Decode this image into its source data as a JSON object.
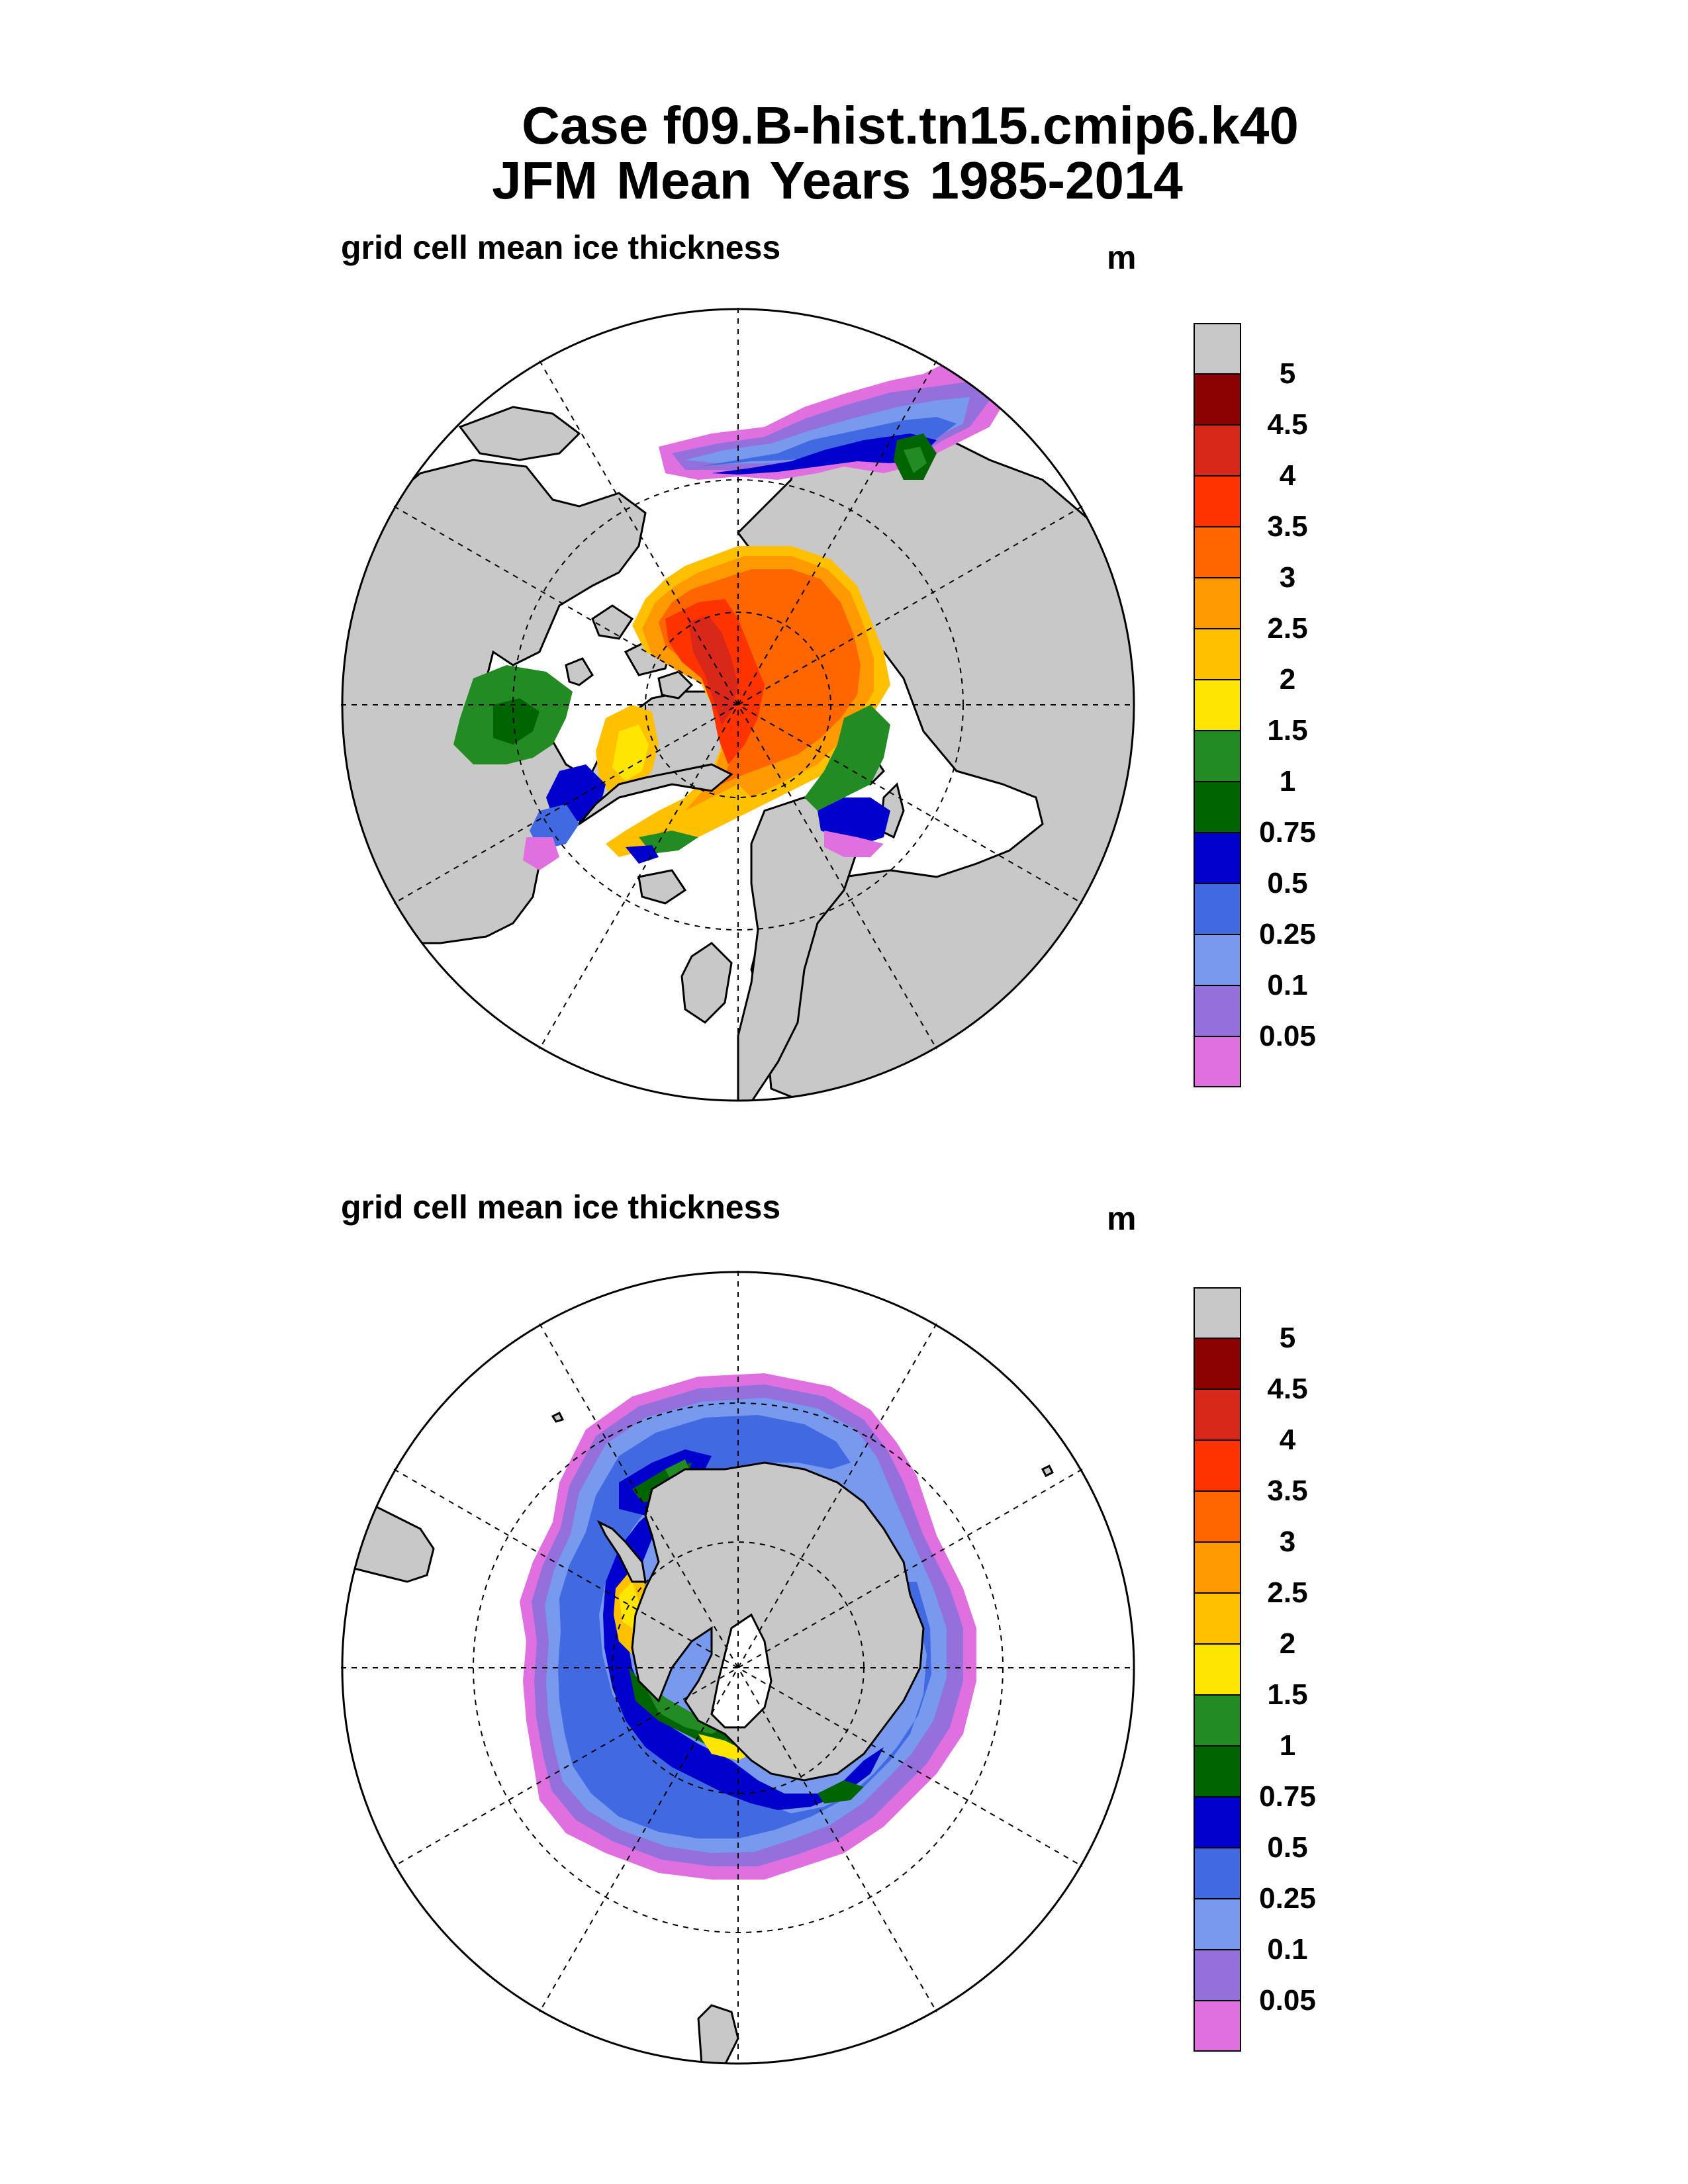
{
  "title": {
    "line1": "Case f09.B-hist.tn15.cmip6.k40",
    "line2": "JFM Mean    Years 1985-2014"
  },
  "panels": [
    {
      "hemisphere": "north",
      "label": "grid cell mean ice thickness",
      "units": "m"
    },
    {
      "hemisphere": "south",
      "label": "grid cell mean ice thickness",
      "units": "m"
    }
  ],
  "colorbar": {
    "levels": [
      "5",
      "4.5",
      "4",
      "3.5",
      "3",
      "2.5",
      "2",
      "1.5",
      "1",
      "0.75",
      "0.5",
      "0.25",
      "0.1",
      "0.05"
    ],
    "colors": [
      "#c8c8c8",
      "#8b0000",
      "#d9271a",
      "#ff3300",
      "#ff6600",
      "#ff9900",
      "#ffc000",
      "#ffe600",
      "#228b22",
      "#006400",
      "#0000cd",
      "#4169e1",
      "#7799ee",
      "#9370db",
      "#e070e0"
    ]
  },
  "colors": {
    "land": "#c8c8c8",
    "ocean": "#ffffff",
    "thick": "#ff3300",
    "medium": "#ff6600",
    "mid": "#ff9900",
    "thin_orange": "#ffc000",
    "yellow": "#ffe600",
    "green": "#228b22",
    "darkgreen": "#006400",
    "blue": "#0000cd",
    "mblue": "#4169e1",
    "lblue": "#7799ee",
    "violet": "#9370db",
    "pink": "#e070e0"
  }
}
